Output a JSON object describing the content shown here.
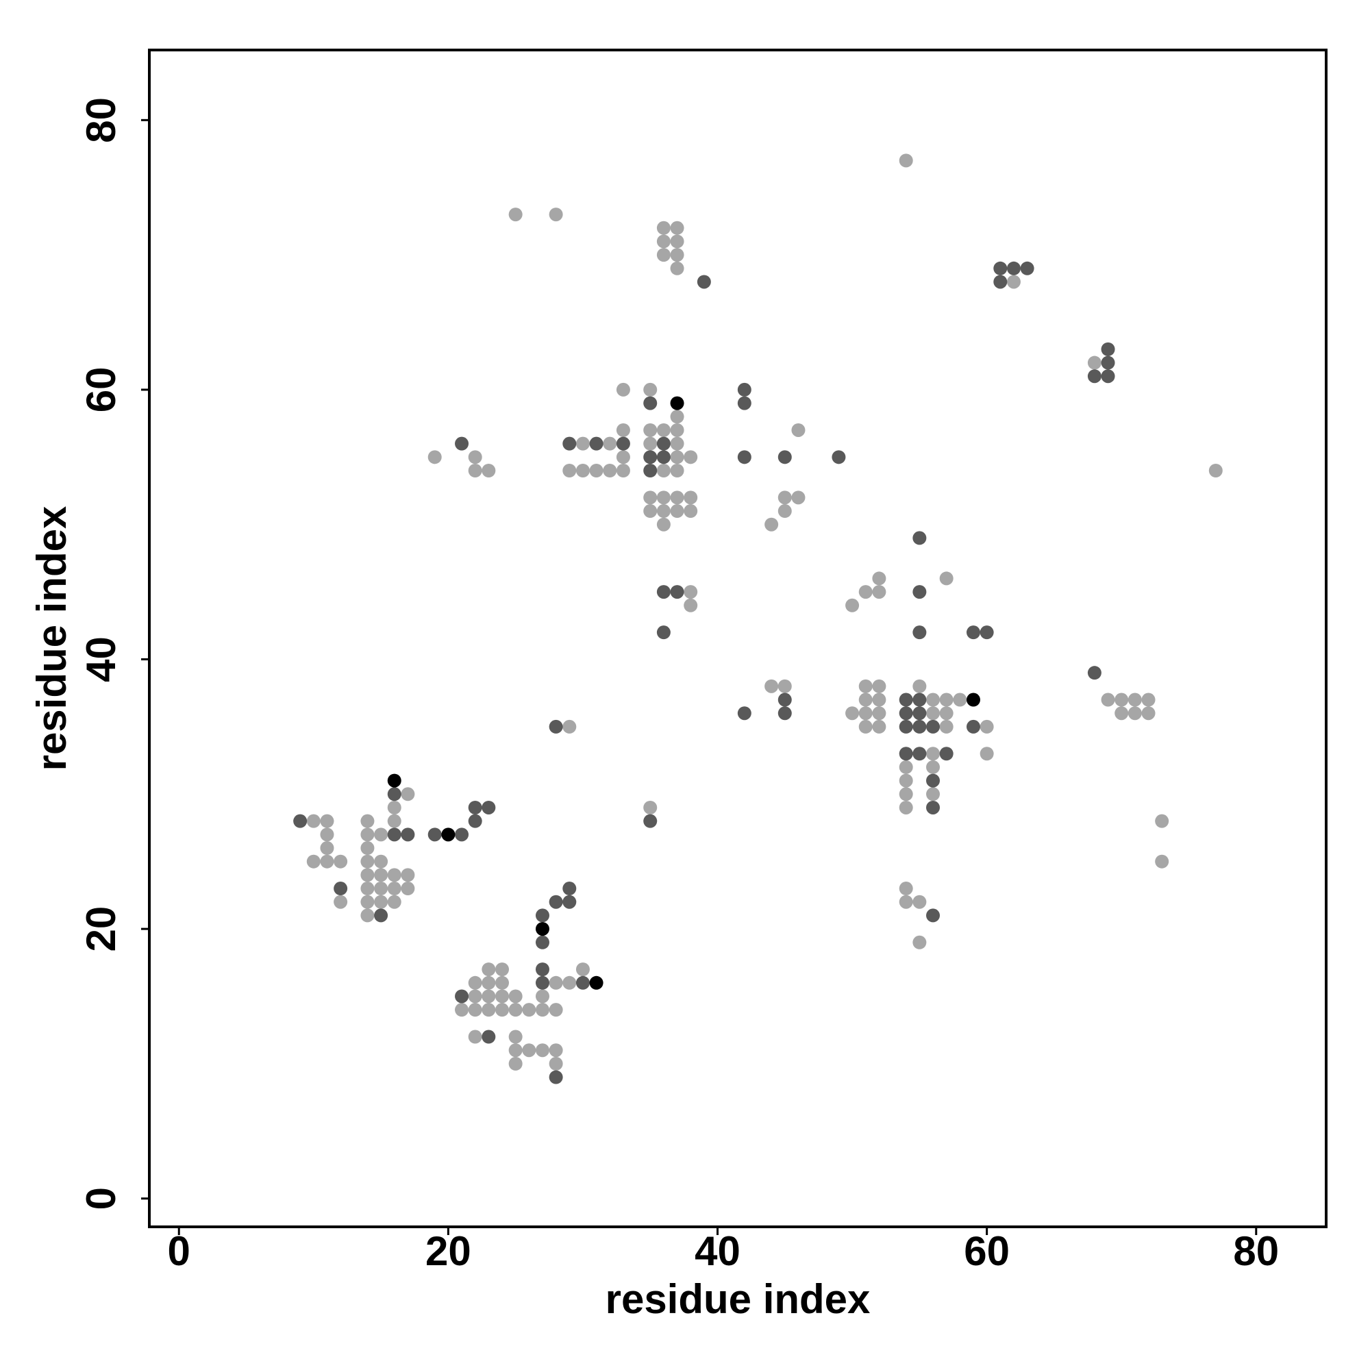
{
  "chart_data": {
    "type": "scatter",
    "xlabel": "residue index",
    "ylabel": "residue index",
    "xlim": [
      -2.2,
      85.2
    ],
    "ylim": [
      -2.1,
      85.2
    ],
    "xticks": [
      0,
      20,
      40,
      60,
      80
    ],
    "yticks": [
      0,
      20,
      40,
      60,
      80
    ],
    "grid": false,
    "series": [
      {
        "color": "#a6a6a6",
        "x": [
          54,
          25,
          28,
          36,
          37,
          36,
          37,
          36,
          37,
          37,
          62,
          68,
          33,
          35,
          37,
          33,
          35,
          36,
          37,
          46,
          30,
          32,
          35,
          37,
          19,
          22,
          33,
          37,
          38,
          22,
          23,
          29,
          30,
          31,
          32,
          33,
          36,
          37,
          77,
          35,
          36,
          37,
          38,
          45,
          46,
          35,
          36,
          37,
          38,
          45,
          36,
          44,
          52,
          57,
          38,
          51,
          52,
          38,
          50,
          44,
          45,
          51,
          52,
          55,
          51,
          52,
          56,
          57,
          58,
          69,
          70,
          71,
          72,
          50,
          51,
          52,
          56,
          57,
          70,
          71,
          72,
          29,
          51,
          52,
          57,
          60,
          56,
          60,
          54,
          56,
          54,
          17,
          54,
          56,
          16,
          35,
          54,
          10,
          11,
          14,
          16,
          73,
          11,
          14,
          15,
          11,
          14,
          10,
          11,
          12,
          14,
          15,
          73,
          14,
          15,
          16,
          17,
          14,
          15,
          16,
          17,
          54,
          12,
          14,
          15,
          16,
          54,
          55,
          14,
          55,
          23,
          24,
          30,
          22,
          23,
          24,
          28,
          29,
          22,
          23,
          24,
          25,
          27,
          21,
          22,
          23,
          24,
          25,
          26,
          27,
          28,
          22,
          25,
          25,
          26,
          27,
          28,
          25,
          28
        ],
        "y": [
          77,
          73,
          73,
          72,
          72,
          71,
          71,
          70,
          70,
          69,
          68,
          62,
          60,
          60,
          58,
          57,
          57,
          57,
          57,
          57,
          56,
          56,
          56,
          56,
          55,
          55,
          55,
          55,
          55,
          54,
          54,
          54,
          54,
          54,
          54,
          54,
          54,
          54,
          54,
          52,
          52,
          52,
          52,
          52,
          52,
          51,
          51,
          51,
          51,
          51,
          50,
          50,
          46,
          46,
          45,
          45,
          45,
          44,
          44,
          38,
          38,
          38,
          38,
          38,
          37,
          37,
          37,
          37,
          37,
          37,
          37,
          37,
          37,
          36,
          36,
          36,
          36,
          36,
          36,
          36,
          36,
          35,
          35,
          35,
          35,
          35,
          33,
          33,
          32,
          32,
          31,
          30,
          30,
          30,
          29,
          29,
          29,
          28,
          28,
          28,
          28,
          28,
          27,
          27,
          27,
          26,
          26,
          25,
          25,
          25,
          25,
          25,
          25,
          24,
          24,
          24,
          24,
          23,
          23,
          23,
          23,
          23,
          22,
          22,
          22,
          22,
          22,
          22,
          21,
          19,
          17,
          17,
          17,
          16,
          16,
          16,
          16,
          16,
          15,
          15,
          15,
          15,
          15,
          14,
          14,
          14,
          14,
          14,
          14,
          14,
          14,
          12,
          12,
          11,
          11,
          11,
          11,
          10,
          10
        ]
      },
      {
        "color": "#595959",
        "x": [
          61,
          62,
          63,
          39,
          61,
          69,
          69,
          68,
          69,
          42,
          35,
          42,
          21,
          29,
          31,
          33,
          36,
          35,
          36,
          42,
          45,
          49,
          35,
          55,
          36,
          37,
          55,
          36,
          55,
          59,
          60,
          68,
          45,
          54,
          55,
          42,
          45,
          54,
          55,
          28,
          54,
          55,
          56,
          59,
          54,
          55,
          57,
          56,
          16,
          56,
          22,
          23,
          9,
          22,
          35,
          16,
          17,
          19,
          21,
          12,
          29,
          28,
          29,
          15,
          27,
          56,
          27,
          27,
          27,
          30,
          21,
          23,
          28
        ],
        "y": [
          69,
          69,
          69,
          68,
          68,
          63,
          62,
          61,
          61,
          60,
          59,
          59,
          56,
          56,
          56,
          56,
          56,
          55,
          55,
          55,
          55,
          55,
          54,
          49,
          45,
          45,
          45,
          42,
          42,
          42,
          42,
          39,
          37,
          37,
          37,
          36,
          36,
          36,
          36,
          35,
          35,
          35,
          35,
          35,
          33,
          33,
          33,
          31,
          30,
          29,
          29,
          29,
          28,
          28,
          28,
          27,
          27,
          27,
          27,
          23,
          23,
          22,
          22,
          21,
          21,
          21,
          19,
          17,
          16,
          16,
          15,
          12,
          9
        ]
      },
      {
        "color": "#000000",
        "x": [
          37,
          59,
          16,
          20,
          27,
          31
        ],
        "y": [
          59,
          37,
          31,
          27,
          20,
          16
        ]
      }
    ]
  }
}
